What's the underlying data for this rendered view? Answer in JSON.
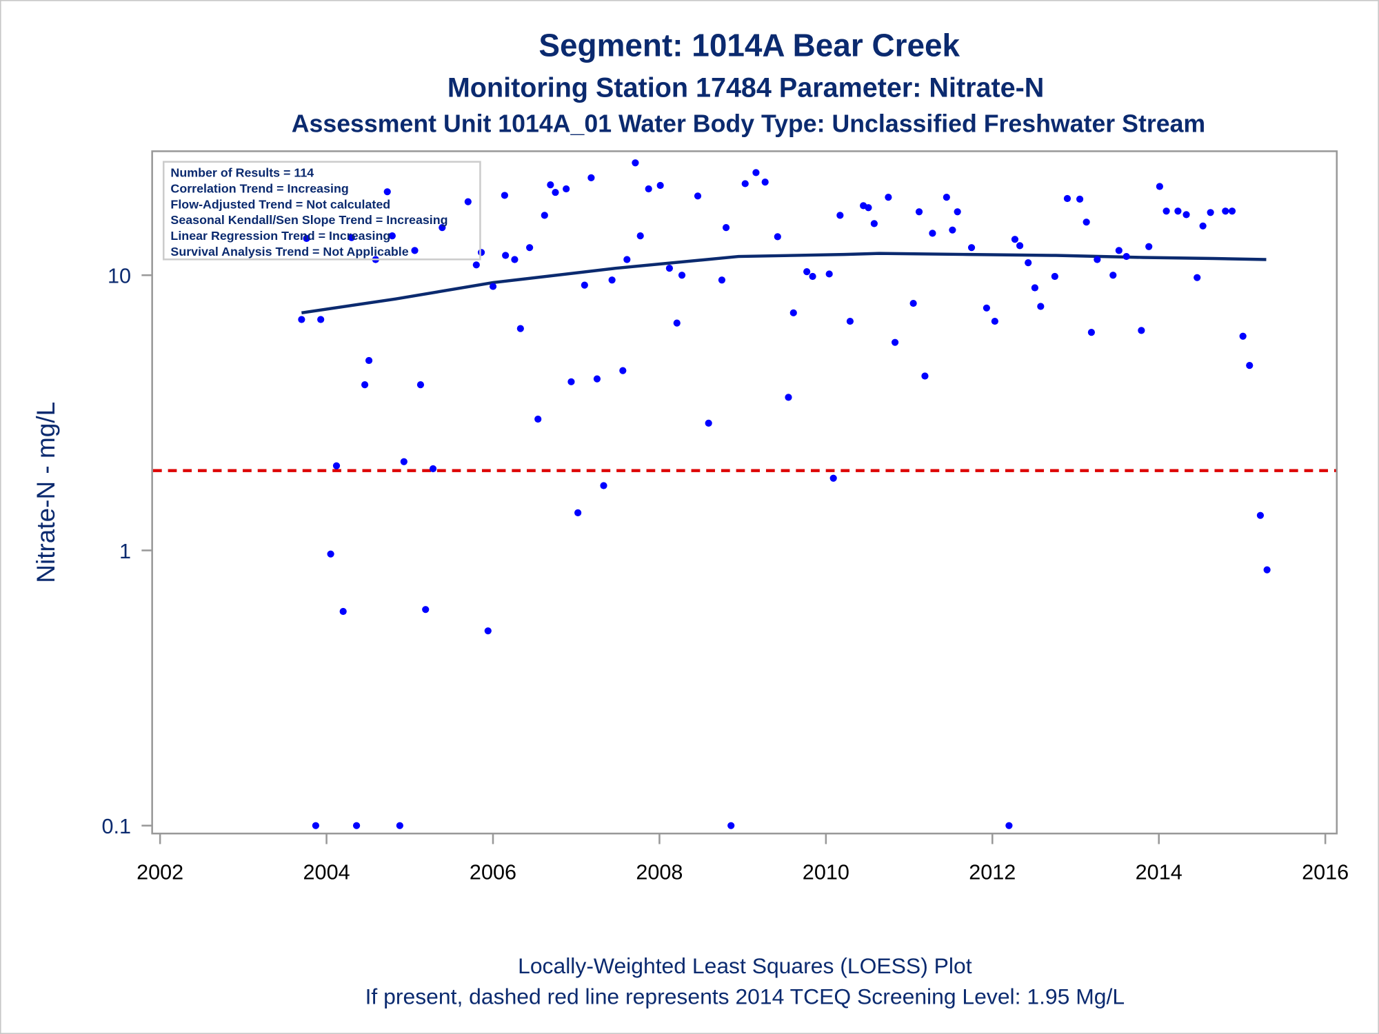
{
  "chart_data": {
    "type": "scatter",
    "title": "Segment: 1014A  Bear Creek",
    "subtitle": "Monitoring Station 17484 Parameter: Nitrate-N",
    "subtitle2": "Assessment Unit 1014A_01   Water Body Type: Unclassified Freshwater Stream",
    "xlabel": "",
    "ylabel": "Nitrate-N - mg/L",
    "yscale": "log",
    "xlim": [
      2002,
      2016
    ],
    "ylim": [
      0.1,
      30
    ],
    "xticks": [
      "2002",
      "2004",
      "2006",
      "2008",
      "2010",
      "2012",
      "2014",
      "2016"
    ],
    "yticks": [
      "0.1",
      "1",
      "10"
    ],
    "grid": false,
    "legend_placement": "top-left",
    "legend": [
      "Number of Results = 114",
      "Correlation Trend = Increasing",
      "Flow-Adjusted Trend = Not calculated",
      "Seasonal Kendall/Sen Slope Trend = Increasing",
      "Linear Regression Trend = Increasing",
      "Survival Analysis Trend = Not Applicable"
    ],
    "footer": [
      "Locally-Weighted Least Squares (LOESS) Plot",
      "If present, dashed red line represents 2014 TCEQ Screening Level: 1.95 Mg/L"
    ],
    "reference_line": {
      "value": 1.95,
      "color": "#dd0000",
      "style": "dashed"
    },
    "colors": {
      "points": "#0000ff",
      "loess": "#0b2a6f",
      "text": "#0b2a6f",
      "axis": "#999999"
    },
    "points": [
      [
        2003.7,
        6.9
      ],
      [
        2003.76,
        13.6
      ],
      [
        2003.93,
        6.9
      ],
      [
        2003.87,
        0.1
      ],
      [
        2004.05,
        0.97
      ],
      [
        2004.12,
        2.03
      ],
      [
        2004.2,
        0.6
      ],
      [
        2004.3,
        13.7
      ],
      [
        2004.36,
        0.1
      ],
      [
        2004.46,
        4.0
      ],
      [
        2004.51,
        4.9
      ],
      [
        2004.59,
        11.4
      ],
      [
        2004.73,
        20.1
      ],
      [
        2004.79,
        13.9
      ],
      [
        2004.88,
        0.1
      ],
      [
        2004.93,
        2.1
      ],
      [
        2005.06,
        12.3
      ],
      [
        2005.13,
        4.0
      ],
      [
        2005.19,
        0.61
      ],
      [
        2005.28,
        1.98
      ],
      [
        2005.39,
        14.9
      ],
      [
        2005.7,
        18.5
      ],
      [
        2005.8,
        10.9
      ],
      [
        2005.86,
        12.1
      ],
      [
        2005.94,
        0.51
      ],
      [
        2006.0,
        9.1
      ],
      [
        2006.14,
        19.5
      ],
      [
        2006.15,
        11.8
      ],
      [
        2006.26,
        11.4
      ],
      [
        2006.33,
        6.4
      ],
      [
        2006.44,
        12.6
      ],
      [
        2006.54,
        3.0
      ],
      [
        2006.62,
        16.5
      ],
      [
        2006.69,
        21.3
      ],
      [
        2006.75,
        20.0
      ],
      [
        2006.88,
        20.6
      ],
      [
        2006.94,
        4.1
      ],
      [
        2007.02,
        1.37
      ],
      [
        2007.1,
        9.2
      ],
      [
        2007.18,
        22.6
      ],
      [
        2007.25,
        4.2
      ],
      [
        2007.33,
        1.72
      ],
      [
        2007.43,
        9.6
      ],
      [
        2007.56,
        4.5
      ],
      [
        2007.61,
        11.4
      ],
      [
        2007.71,
        25.6
      ],
      [
        2007.77,
        13.9
      ],
      [
        2007.87,
        20.6
      ],
      [
        2008.01,
        21.2
      ],
      [
        2008.12,
        10.6
      ],
      [
        2008.21,
        6.7
      ],
      [
        2008.27,
        10.0
      ],
      [
        2008.46,
        19.4
      ],
      [
        2008.59,
        2.9
      ],
      [
        2008.75,
        9.6
      ],
      [
        2008.8,
        14.9
      ],
      [
        2008.86,
        0.1
      ],
      [
        2009.03,
        21.5
      ],
      [
        2009.16,
        23.6
      ],
      [
        2009.27,
        21.8
      ],
      [
        2009.42,
        13.8
      ],
      [
        2009.55,
        3.6
      ],
      [
        2009.61,
        7.3
      ],
      [
        2009.77,
        10.3
      ],
      [
        2009.84,
        9.9
      ],
      [
        2010.04,
        10.1
      ],
      [
        2010.09,
        1.83
      ],
      [
        2010.17,
        16.5
      ],
      [
        2010.29,
        6.8
      ],
      [
        2010.45,
        17.9
      ],
      [
        2010.51,
        17.6
      ],
      [
        2010.58,
        15.4
      ],
      [
        2010.75,
        19.2
      ],
      [
        2010.83,
        5.7
      ],
      [
        2011.05,
        7.9
      ],
      [
        2011.12,
        17.0
      ],
      [
        2011.19,
        4.3
      ],
      [
        2011.28,
        14.2
      ],
      [
        2011.45,
        19.2
      ],
      [
        2011.52,
        14.6
      ],
      [
        2011.58,
        17.0
      ],
      [
        2011.75,
        12.6
      ],
      [
        2011.93,
        7.6
      ],
      [
        2012.03,
        6.8
      ],
      [
        2012.2,
        0.1
      ],
      [
        2012.27,
        13.5
      ],
      [
        2012.33,
        12.8
      ],
      [
        2012.43,
        11.1
      ],
      [
        2012.51,
        9.0
      ],
      [
        2012.58,
        7.7
      ],
      [
        2012.75,
        9.9
      ],
      [
        2012.9,
        19.0
      ],
      [
        2013.05,
        18.9
      ],
      [
        2013.13,
        15.6
      ],
      [
        2013.19,
        6.2
      ],
      [
        2013.26,
        11.4
      ],
      [
        2013.45,
        10.0
      ],
      [
        2013.52,
        12.3
      ],
      [
        2013.61,
        11.7
      ],
      [
        2013.79,
        6.3
      ],
      [
        2013.88,
        12.7
      ],
      [
        2014.01,
        21.0
      ],
      [
        2014.09,
        17.1
      ],
      [
        2014.23,
        17.1
      ],
      [
        2014.33,
        16.6
      ],
      [
        2014.46,
        9.8
      ],
      [
        2014.53,
        15.1
      ],
      [
        2014.62,
        16.9
      ],
      [
        2014.8,
        17.1
      ],
      [
        2014.88,
        17.1
      ],
      [
        2015.01,
        6.0
      ],
      [
        2015.09,
        4.7
      ],
      [
        2015.22,
        1.34
      ],
      [
        2015.3,
        0.85
      ]
    ],
    "loess": [
      [
        2003.7,
        7.3
      ],
      [
        2004.83,
        8.2
      ],
      [
        2006.0,
        9.4
      ],
      [
        2007.47,
        10.6
      ],
      [
        2008.95,
        11.7
      ],
      [
        2010.22,
        11.9
      ],
      [
        2010.64,
        12.0
      ],
      [
        2011.7,
        11.9
      ],
      [
        2012.76,
        11.8
      ],
      [
        2013.81,
        11.6
      ],
      [
        2014.66,
        11.5
      ],
      [
        2015.29,
        11.4
      ]
    ]
  }
}
